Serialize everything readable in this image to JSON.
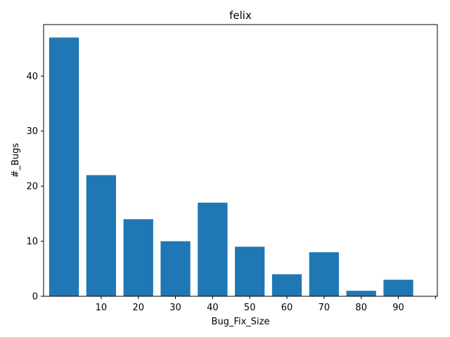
{
  "chart_data": {
    "type": "bar",
    "title": "felix",
    "xlabel": "Bug_Fix_Size",
    "ylabel": "#_Bugs",
    "x": [
      0,
      10,
      20,
      30,
      40,
      50,
      60,
      70,
      80,
      90
    ],
    "values": [
      47,
      22,
      14,
      10,
      17,
      9,
      4,
      8,
      1,
      3
    ],
    "xtick_values": [
      10,
      20,
      30,
      40,
      50,
      60,
      70,
      80,
      90,
      100
    ],
    "xtick_labels": [
      "10",
      "20",
      "30",
      "40",
      "50",
      "60",
      "70",
      "80",
      "90",
      ""
    ],
    "yticks": [
      0,
      10,
      20,
      30,
      40
    ],
    "xlim": [
      -5.5,
      100.5
    ],
    "ylim": [
      0,
      49.35
    ],
    "bar_width": 8,
    "bar_color": "#1f77b4",
    "grid": false,
    "legend": "none"
  }
}
